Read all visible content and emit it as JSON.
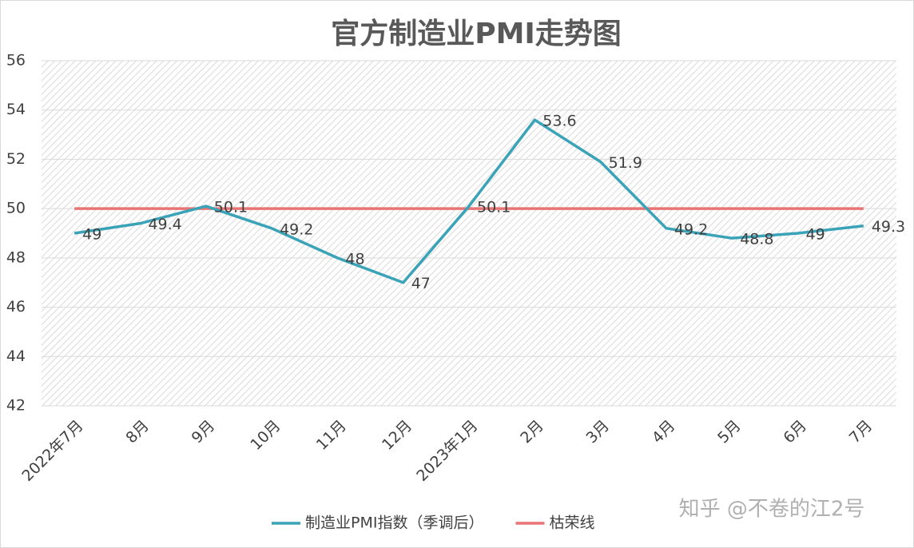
{
  "chart_data": {
    "type": "line",
    "title": "官方制造业PMI走势图",
    "categories": [
      "2022年7月",
      "8月",
      "9月",
      "10月",
      "11月",
      "12月",
      "2023年1月",
      "2月",
      "3月",
      "4月",
      "5月",
      "6月",
      "7月"
    ],
    "series": [
      {
        "name": "制造业PMI指数（季调后）",
        "color": "#3ba3b8",
        "values": [
          49,
          49.4,
          50.1,
          49.2,
          48,
          47,
          50.1,
          53.6,
          51.9,
          49.2,
          48.8,
          49,
          49.3
        ],
        "data_labels": true
      },
      {
        "name": "枯荣线",
        "color": "#e87474",
        "values": [
          50,
          50,
          50,
          50,
          50,
          50,
          50,
          50,
          50,
          50,
          50,
          50,
          50
        ],
        "data_labels": false
      }
    ],
    "ylim": [
      42,
      56
    ],
    "yticks": [
      42,
      44,
      46,
      48,
      50,
      52,
      54,
      56
    ],
    "grid": true,
    "legend": "bottom",
    "watermark": "知乎 @不卷的江2号"
  }
}
